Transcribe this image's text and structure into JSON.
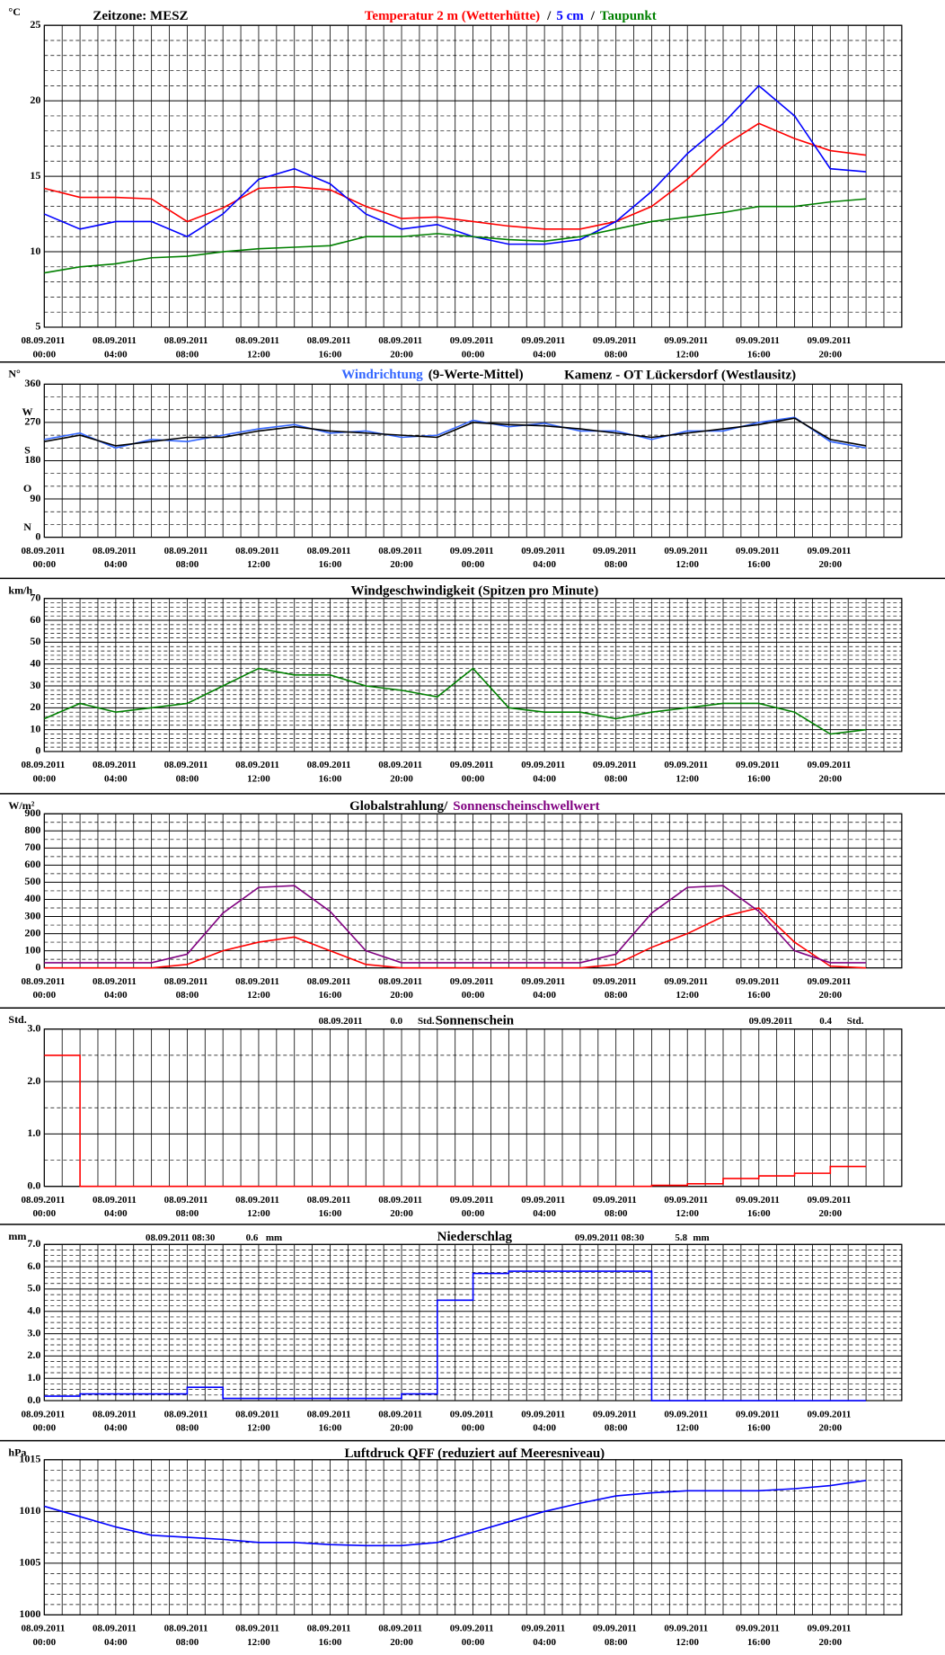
{
  "chart_data": [
    {
      "type": "line",
      "note": "Zeitzone: MESZ",
      "unit_label": "°C",
      "separator": "/",
      "categories": [
        "08.09.2011 00:00",
        null,
        "08.09.2011 04:00",
        null,
        "08.09.2011 08:00",
        null,
        "08.09.2011 12:00",
        null,
        "08.09.2011 16:00",
        null,
        "08.09.2011 20:00",
        null,
        "09.09.2011 00:00",
        null,
        "09.09.2011 04:00",
        null,
        "09.09.2011 08:00",
        null,
        "09.09.2011 12:00",
        null,
        "09.09.2011 16:00",
        null,
        "09.09.2011 20:00",
        null
      ],
      "ylim": [
        5,
        25
      ],
      "yticks": [
        5,
        10,
        15,
        20,
        25
      ],
      "grid": true,
      "series": [
        {
          "name": "Temperatur 2 m (Wetterhütte)",
          "color": "#ff0000",
          "values": [
            14.2,
            13.6,
            13.6,
            13.5,
            12.0,
            12.9,
            14.2,
            14.3,
            14.1,
            13.0,
            12.2,
            12.3,
            12.0,
            11.7,
            11.5,
            11.5,
            12.0,
            13.0,
            14.8,
            17.0,
            18.5,
            17.5,
            16.7,
            16.4
          ]
        },
        {
          "name": "5 cm",
          "color": "#0000ff",
          "values": [
            12.5,
            11.5,
            12.0,
            12.0,
            11.0,
            12.5,
            14.8,
            15.5,
            14.5,
            12.5,
            11.5,
            11.8,
            11.0,
            10.5,
            10.5,
            10.8,
            12.0,
            14.0,
            16.5,
            18.5,
            21.0,
            19.0,
            15.5,
            15.3
          ]
        },
        {
          "name": "Taupunkt",
          "color": "#008000",
          "values": [
            8.6,
            9.0,
            9.2,
            9.6,
            9.7,
            10.0,
            10.2,
            10.3,
            10.4,
            11.0,
            11.0,
            11.2,
            11.0,
            10.8,
            10.7,
            11.0,
            11.5,
            12.0,
            12.3,
            12.6,
            13.0,
            13.0,
            13.3,
            13.5
          ]
        }
      ]
    },
    {
      "type": "line",
      "unit_label": "N°",
      "location": "Kamenz - OT Lückersdorf (Westlausitz)",
      "categories": [
        "08.09.2011 00:00",
        null,
        "08.09.2011 04:00",
        null,
        "08.09.2011 08:00",
        null,
        "08.09.2011 12:00",
        null,
        "08.09.2011 16:00",
        null,
        "08.09.2011 20:00",
        null,
        "09.09.2011 00:00",
        null,
        "09.09.2011 04:00",
        null,
        "09.09.2011 08:00",
        null,
        "09.09.2011 12:00",
        null,
        "09.09.2011 16:00",
        null,
        "09.09.2011 20:00",
        null
      ],
      "ylim": [
        0,
        360
      ],
      "yticks": [
        0,
        90,
        180,
        270,
        360
      ],
      "grid": true,
      "compass_labels": [
        {
          "value": 0,
          "label": "N"
        },
        {
          "value": 90,
          "label": "O"
        },
        {
          "value": 180,
          "label": "S"
        },
        {
          "value": 270,
          "label": "W"
        }
      ],
      "series": [
        {
          "name": "Windrichtung",
          "color": "#3366ff",
          "values": [
            230,
            245,
            210,
            230,
            225,
            240,
            255,
            265,
            245,
            250,
            235,
            240,
            275,
            260,
            268,
            250,
            250,
            230,
            250,
            250,
            270,
            282,
            225,
            210
          ]
        },
        {
          "name": "(9-Werte-Mittel)",
          "color": "#000000",
          "values": [
            225,
            240,
            215,
            225,
            235,
            235,
            250,
            260,
            250,
            245,
            240,
            235,
            270,
            265,
            262,
            255,
            245,
            235,
            245,
            255,
            265,
            280,
            230,
            215
          ]
        }
      ]
    },
    {
      "type": "line",
      "title": "Windgeschwindigkeit (Spitzen pro Minute)",
      "unit_label": "km/h",
      "categories": [
        "08.09.2011 00:00",
        null,
        "08.09.2011 04:00",
        null,
        "08.09.2011 08:00",
        null,
        "08.09.2011 12:00",
        null,
        "08.09.2011 16:00",
        null,
        "08.09.2011 20:00",
        null,
        "09.09.2011 00:00",
        null,
        "09.09.2011 04:00",
        null,
        "09.09.2011 08:00",
        null,
        "09.09.2011 12:00",
        null,
        "09.09.2011 16:00",
        null,
        "09.09.2011 20:00",
        null
      ],
      "ylim": [
        0,
        70
      ],
      "yticks": [
        0,
        10,
        20,
        30,
        40,
        50,
        60,
        70
      ],
      "grid": true,
      "series": [
        {
          "color": "#008000",
          "values": [
            15,
            22,
            18,
            20,
            22,
            30,
            38,
            35,
            35,
            30,
            28,
            25,
            38,
            20,
            18,
            18,
            15,
            18,
            20,
            22,
            22,
            18,
            8,
            10
          ]
        }
      ]
    },
    {
      "type": "line",
      "title": "Globalstrahlung/",
      "unit_label": "W/m²",
      "categories": [
        "08.09.2011 00:00",
        null,
        "08.09.2011 04:00",
        null,
        "08.09.2011 08:00",
        null,
        "08.09.2011 12:00",
        null,
        "08.09.2011 16:00",
        null,
        "08.09.2011 20:00",
        null,
        "09.09.2011 00:00",
        null,
        "09.09.2011 04:00",
        null,
        "09.09.2011 08:00",
        null,
        "09.09.2011 12:00",
        null,
        "09.09.2011 16:00",
        null,
        "09.09.2011 20:00",
        null
      ],
      "ylim": [
        0,
        900
      ],
      "yticks": [
        0,
        100,
        200,
        300,
        400,
        500,
        600,
        700,
        800,
        900
      ],
      "grid": true,
      "series": [
        {
          "color": "#ff0000",
          "values": [
            0,
            0,
            0,
            0,
            20,
            100,
            150,
            180,
            100,
            20,
            0,
            0,
            0,
            0,
            0,
            0,
            20,
            120,
            200,
            300,
            350,
            150,
            10,
            0
          ]
        },
        {
          "name": "Sonnenscheinschwellwert",
          "color": "#800080",
          "values": [
            30,
            30,
            30,
            30,
            80,
            320,
            470,
            480,
            330,
            100,
            30,
            30,
            30,
            30,
            30,
            30,
            80,
            320,
            470,
            480,
            330,
            100,
            30,
            30
          ]
        }
      ]
    },
    {
      "type": "line",
      "step": true,
      "title": "Sonnenschein",
      "unit_label": "Std.",
      "annotations": [
        [
          "08.09.2011",
          "0.0",
          "Std."
        ],
        [
          "09.09.2011",
          "0.4",
          "Std."
        ]
      ],
      "categories": [
        "08.09.2011 00:00",
        null,
        "08.09.2011 04:00",
        null,
        "08.09.2011 08:00",
        null,
        "08.09.2011 12:00",
        null,
        "08.09.2011 16:00",
        null,
        "08.09.2011 20:00",
        null,
        "09.09.2011 00:00",
        null,
        "09.09.2011 04:00",
        null,
        "09.09.2011 08:00",
        null,
        "09.09.2011 12:00",
        null,
        "09.09.2011 16:00",
        null,
        "09.09.2011 20:00",
        null
      ],
      "ylim": [
        0,
        3
      ],
      "yticks": [
        {
          "value": 0,
          "label": "0.0"
        },
        {
          "value": 1,
          "label": "1.0"
        },
        {
          "value": 2,
          "label": "2.0"
        },
        {
          "value": 3,
          "label": "3.0"
        }
      ],
      "grid": true,
      "series": [
        {
          "color": "#ff0000",
          "values": [
            2.5,
            0,
            0,
            0,
            0,
            0,
            0,
            0,
            0,
            0,
            0,
            0,
            0,
            0,
            0,
            0,
            0,
            0.02,
            0.05,
            0.15,
            0.2,
            0.25,
            0.38,
            0.38
          ]
        }
      ]
    },
    {
      "type": "line",
      "step": true,
      "title": "Niederschlag",
      "unit_label": "mm",
      "annotations": [
        [
          "08.09.2011 08:30",
          "0.6",
          "mm"
        ],
        [
          "09.09.2011 08:30",
          "5.8",
          "mm"
        ]
      ],
      "categories": [
        "08.09.2011 00:00",
        null,
        "08.09.2011 04:00",
        null,
        "08.09.2011 08:00",
        null,
        "08.09.2011 12:00",
        null,
        "08.09.2011 16:00",
        null,
        "08.09.2011 20:00",
        null,
        "09.09.2011 00:00",
        null,
        "09.09.2011 04:00",
        null,
        "09.09.2011 08:00",
        null,
        "09.09.2011 12:00",
        null,
        "09.09.2011 16:00",
        null,
        "09.09.2011 20:00",
        null
      ],
      "ylim": [
        0,
        7
      ],
      "yticks": [
        {
          "value": 0,
          "label": "0.0"
        },
        {
          "value": 1,
          "label": "1.0"
        },
        {
          "value": 2,
          "label": "2.0"
        },
        {
          "value": 3,
          "label": "3.0"
        },
        {
          "value": 4,
          "label": "4.0"
        },
        {
          "value": 5,
          "label": "5.0"
        },
        {
          "value": 6,
          "label": "6.0"
        },
        {
          "value": 7,
          "label": "7.0"
        }
      ],
      "grid": true,
      "series": [
        {
          "color": "#0000ff",
          "values": [
            0.2,
            0.3,
            0.3,
            0.3,
            0.6,
            0.1,
            0.1,
            0.1,
            0.1,
            0.1,
            0.3,
            4.5,
            5.7,
            5.8,
            5.8,
            5.8,
            5.8,
            0,
            0,
            0,
            0,
            0,
            0,
            0
          ]
        }
      ]
    },
    {
      "type": "line",
      "title": "Luftdruck QFF (reduziert auf Meeresniveau)",
      "unit_label": "hPa",
      "categories": [
        "08.09.2011 00:00",
        null,
        "08.09.2011 04:00",
        null,
        "08.09.2011 08:00",
        null,
        "08.09.2011 12:00",
        null,
        "08.09.2011 16:00",
        null,
        "08.09.2011 20:00",
        null,
        "09.09.2011 00:00",
        null,
        "09.09.2011 04:00",
        null,
        "09.09.2011 08:00",
        null,
        "09.09.2011 12:00",
        null,
        "09.09.2011 16:00",
        null,
        "09.09.2011 20:00",
        null
      ],
      "ylim": [
        1000,
        1015
      ],
      "yticks": [
        1000,
        1005,
        1010,
        1015
      ],
      "grid": true,
      "series": [
        {
          "color": "#0000ff",
          "values": [
            1010.5,
            1009.5,
            1008.5,
            1007.7,
            1007.5,
            1007.3,
            1007.0,
            1007.0,
            1006.8,
            1006.7,
            1006.7,
            1007.0,
            1008.0,
            1009.0,
            1010.0,
            1010.8,
            1011.5,
            1011.8,
            1012.0,
            1012.0,
            1012.0,
            1012.2,
            1012.5,
            1013.0
          ]
        }
      ]
    }
  ]
}
